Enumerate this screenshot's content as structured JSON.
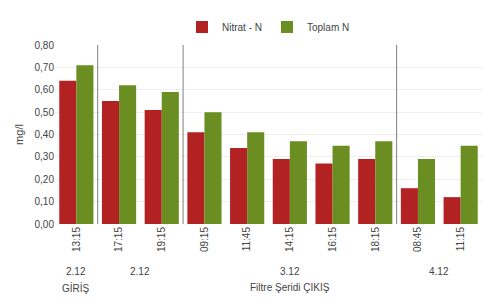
{
  "chart_data": {
    "type": "bar",
    "categories": [
      "13:15",
      "17:15",
      "19:15",
      "09:15",
      "11:45",
      "14:15",
      "16:15",
      "18:15",
      "08:45",
      "11:15"
    ],
    "series": [
      {
        "name": "Nitrat - N",
        "color": "#B22222",
        "values": [
          0.64,
          0.55,
          0.51,
          0.41,
          0.34,
          0.29,
          0.27,
          0.29,
          0.16,
          0.12
        ]
      },
      {
        "name": "Toplam N",
        "color": "#6B8E23",
        "values": [
          0.71,
          0.62,
          0.59,
          0.5,
          0.41,
          0.37,
          0.35,
          0.37,
          0.29,
          0.35
        ]
      }
    ],
    "y_label": "mg/l",
    "ylim": [
      0.0,
      0.8
    ],
    "yticks": [
      {
        "value": 0.0,
        "label": "0,00"
      },
      {
        "value": 0.1,
        "label": "0,10"
      },
      {
        "value": 0.2,
        "label": "0,20"
      },
      {
        "value": 0.3,
        "label": "0,30"
      },
      {
        "value": 0.4,
        "label": "0,40"
      },
      {
        "value": 0.5,
        "label": "0,50"
      },
      {
        "value": 0.6,
        "label": "0,60"
      },
      {
        "value": 0.7,
        "label": "0,70"
      },
      {
        "value": 0.8,
        "label": "0,80"
      }
    ],
    "annotations": [
      [
        {
          "text": "2.12",
          "from": "13:15",
          "to": "13:15"
        },
        {
          "text": "2.12",
          "from": "17:15",
          "to": "19:15"
        },
        {
          "text": "3.12",
          "from": "09:15",
          "to": "18:15"
        },
        {
          "text": "4.12",
          "from": "08:45",
          "to": "11:15"
        }
      ],
      [
        {
          "text": "GİRİŞ",
          "from": "13:15",
          "to": "13:15"
        },
        {
          "text": "Filtre Şeridi ÇIKIŞ",
          "from": "17:15",
          "to": "11:15"
        }
      ]
    ],
    "grid": true,
    "legend": "upper center"
  }
}
